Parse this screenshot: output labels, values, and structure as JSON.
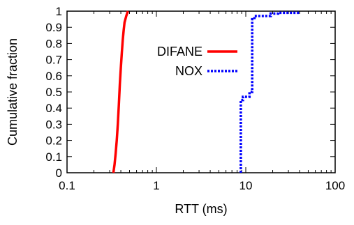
{
  "chart_data": {
    "type": "line",
    "title": "",
    "xlabel": "RTT (ms)",
    "ylabel": "Cumulative fraction",
    "x_scale": "log",
    "xlim": [
      0.1,
      100
    ],
    "ylim": [
      0,
      1
    ],
    "x_ticks": [
      0.1,
      1,
      10,
      100
    ],
    "x_tick_labels": [
      "0.1",
      "1",
      "10",
      "100"
    ],
    "y_ticks": [
      0,
      0.1,
      0.2,
      0.3,
      0.4,
      0.5,
      0.6,
      0.7,
      0.8,
      0.9,
      1
    ],
    "y_tick_labels": [
      "0",
      "0.1",
      "0.2",
      "0.3",
      "0.4",
      "0.5",
      "0.6",
      "0.7",
      "0.8",
      "0.9",
      "1"
    ],
    "grid": false,
    "legend_position": "center",
    "series": [
      {
        "name": "DIFANE",
        "color": "#ff0000",
        "style": "solid",
        "points": [
          [
            0.33,
            0.0
          ],
          [
            0.34,
            0.05
          ],
          [
            0.35,
            0.12
          ],
          [
            0.36,
            0.2
          ],
          [
            0.37,
            0.3
          ],
          [
            0.38,
            0.42
          ],
          [
            0.39,
            0.55
          ],
          [
            0.4,
            0.65
          ],
          [
            0.41,
            0.74
          ],
          [
            0.42,
            0.82
          ],
          [
            0.43,
            0.88
          ],
          [
            0.44,
            0.93
          ],
          [
            0.46,
            0.97
          ],
          [
            0.48,
            1.0
          ]
        ]
      },
      {
        "name": "NOX",
        "color": "#0000ff",
        "style": "dotted",
        "points": [
          [
            8.8,
            0.0
          ],
          [
            8.8,
            0.45
          ],
          [
            9.3,
            0.45
          ],
          [
            9.3,
            0.47
          ],
          [
            11.0,
            0.47
          ],
          [
            11.0,
            0.5
          ],
          [
            11.8,
            0.5
          ],
          [
            11.8,
            0.95
          ],
          [
            12.5,
            0.95
          ],
          [
            12.5,
            0.97
          ],
          [
            19.0,
            0.97
          ],
          [
            19.0,
            0.985
          ],
          [
            23.0,
            0.985
          ],
          [
            23.0,
            0.99
          ],
          [
            40.0,
            0.99
          ]
        ]
      }
    ]
  }
}
